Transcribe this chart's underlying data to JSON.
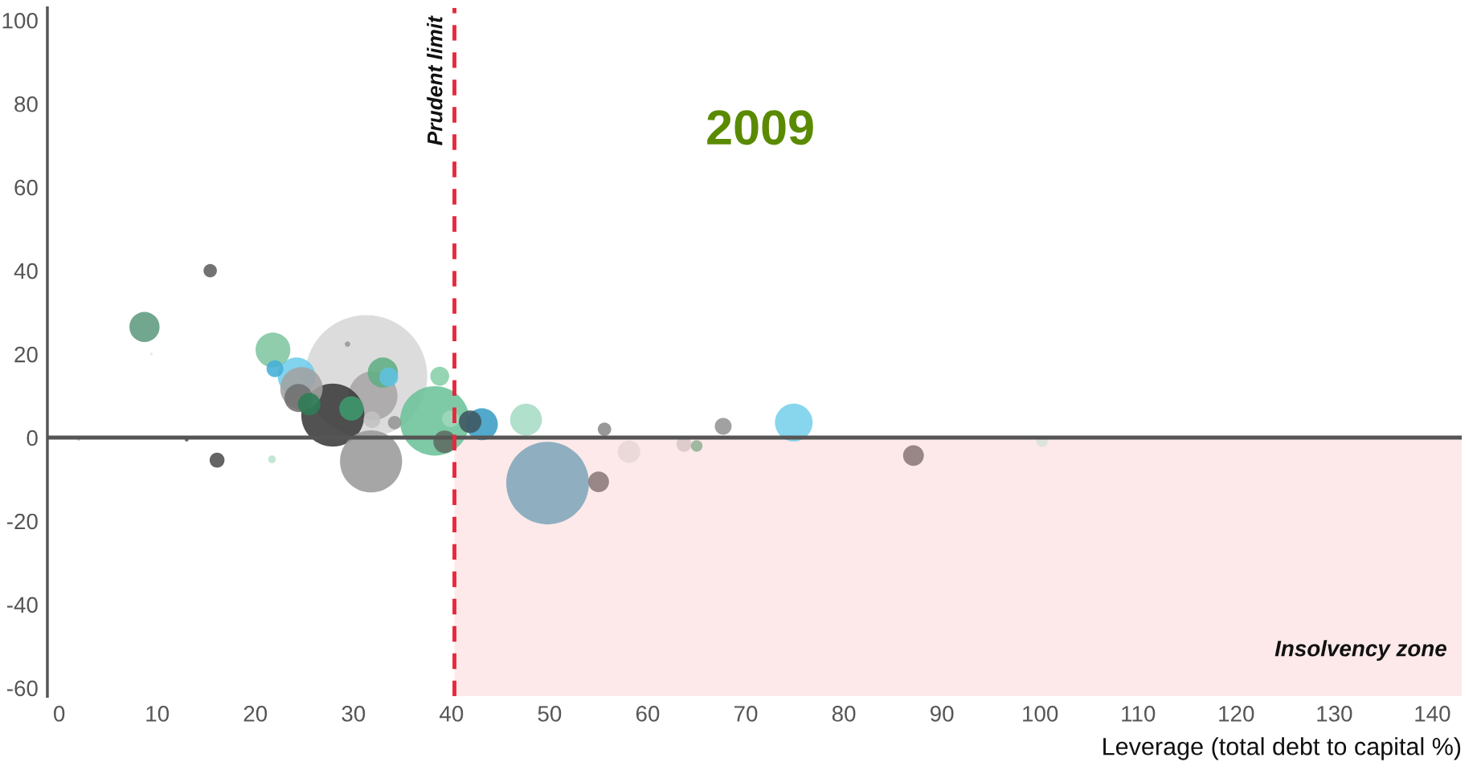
{
  "chart_data": {
    "type": "bubble",
    "title": "2009",
    "xlabel": "Leverage (total debt to capital %)",
    "xlim": [
      -1.2,
      143
    ],
    "ylim": [
      -62,
      103
    ],
    "xticks": [
      0,
      10,
      20,
      30,
      40,
      50,
      60,
      70,
      80,
      90,
      100,
      110,
      120,
      130,
      140
    ],
    "yticks": [
      -60,
      -40,
      -20,
      0,
      20,
      40,
      60,
      80,
      100
    ],
    "grid": false,
    "legend": false,
    "ref_lines": [
      {
        "axis": "y",
        "value": 0,
        "color": "#555555",
        "line_style": "solid"
      },
      {
        "axis": "x",
        "value": 40.3,
        "label": "Prudent limit",
        "color": "#e8283c",
        "line_style": "dashed"
      }
    ],
    "bands": [
      {
        "axis": "x",
        "from": 40.3,
        "to": 143,
        "label": "Insolvency zone",
        "color": "#fde9e9"
      }
    ],
    "series": [
      {
        "x": [
          31.3,
          49.8,
          38.3,
          32,
          27.9,
          31.8,
          24.2,
          24.7,
          21.8,
          8.7,
          74.9,
          43.1,
          47.6,
          33,
          22,
          15.4,
          16.1,
          21.7,
          24.4,
          25.5,
          29.8,
          31.9,
          34.2,
          38.8,
          39.9,
          39.3,
          41.9,
          29.4,
          33.6,
          55,
          55.6,
          58.1,
          63.7,
          65,
          67.7,
          87.1,
          100.2,
          2,
          9.4,
          13
        ],
        "values": [
          14.7,
          -10.9,
          4,
          10,
          5.4,
          -5.7,
          14.7,
          11.8,
          21,
          26.5,
          3.6,
          3.2,
          4.3,
          15.6,
          16.5,
          40,
          -5.4,
          -5.2,
          9.5,
          8,
          7,
          4.3,
          3.6,
          14.7,
          4.5,
          -1,
          3.8,
          22.4,
          14.5,
          -10.6,
          2,
          -3.4,
          -1.6,
          -2,
          2.7,
          -4.3,
          -0.9,
          -0.5,
          20,
          -0.5
        ],
        "sizes": [
          1,
          0.458,
          0.324,
          0.16,
          0.266,
          0.258,
          0.095,
          0.12,
          0.081,
          0.061,
          0.095,
          0.068,
          0.068,
          0.061,
          0.019,
          0.012,
          0.015,
          0.004,
          0.053,
          0.034,
          0.04,
          0.019,
          0.012,
          0.024,
          0.019,
          0.034,
          0.034,
          0.002,
          0.024,
          0.029,
          0.012,
          0.034,
          0.015,
          0.009,
          0.019,
          0.029,
          0.009,
          0.0005,
          0.0005,
          0.001
        ],
        "colors": [
          "#d8d7d8",
          "#7fa6bb",
          "#6cc39a",
          "#a7a5a6",
          "#3a3a3a",
          "#9a9a9b",
          "#6fcdec",
          "#a2a2a2",
          "#7fc6a2",
          "#5f9a7f",
          "#76d0ec",
          "#3a9dc4",
          "#a6dcc5",
          "#5fae84",
          "#45aed6",
          "#5e5e5e",
          "#4e4e4e",
          "#b9e4cf",
          "#707070",
          "#2f7d57",
          "#3d9a6c",
          "#c2c2c2",
          "#959595",
          "#86cfa9",
          "#9ed8bd",
          "#5f6b62",
          "#3f5560",
          "#979797",
          "#5ec2e0",
          "#8b7777",
          "#8a8a8a",
          "#e8d5d5",
          "#d9c6c6",
          "#92b296",
          "#949494",
          "#8b7777",
          "#d8e2da",
          "#a7dcc3",
          "#e6e6e6",
          "#5a5a5a"
        ]
      }
    ]
  }
}
